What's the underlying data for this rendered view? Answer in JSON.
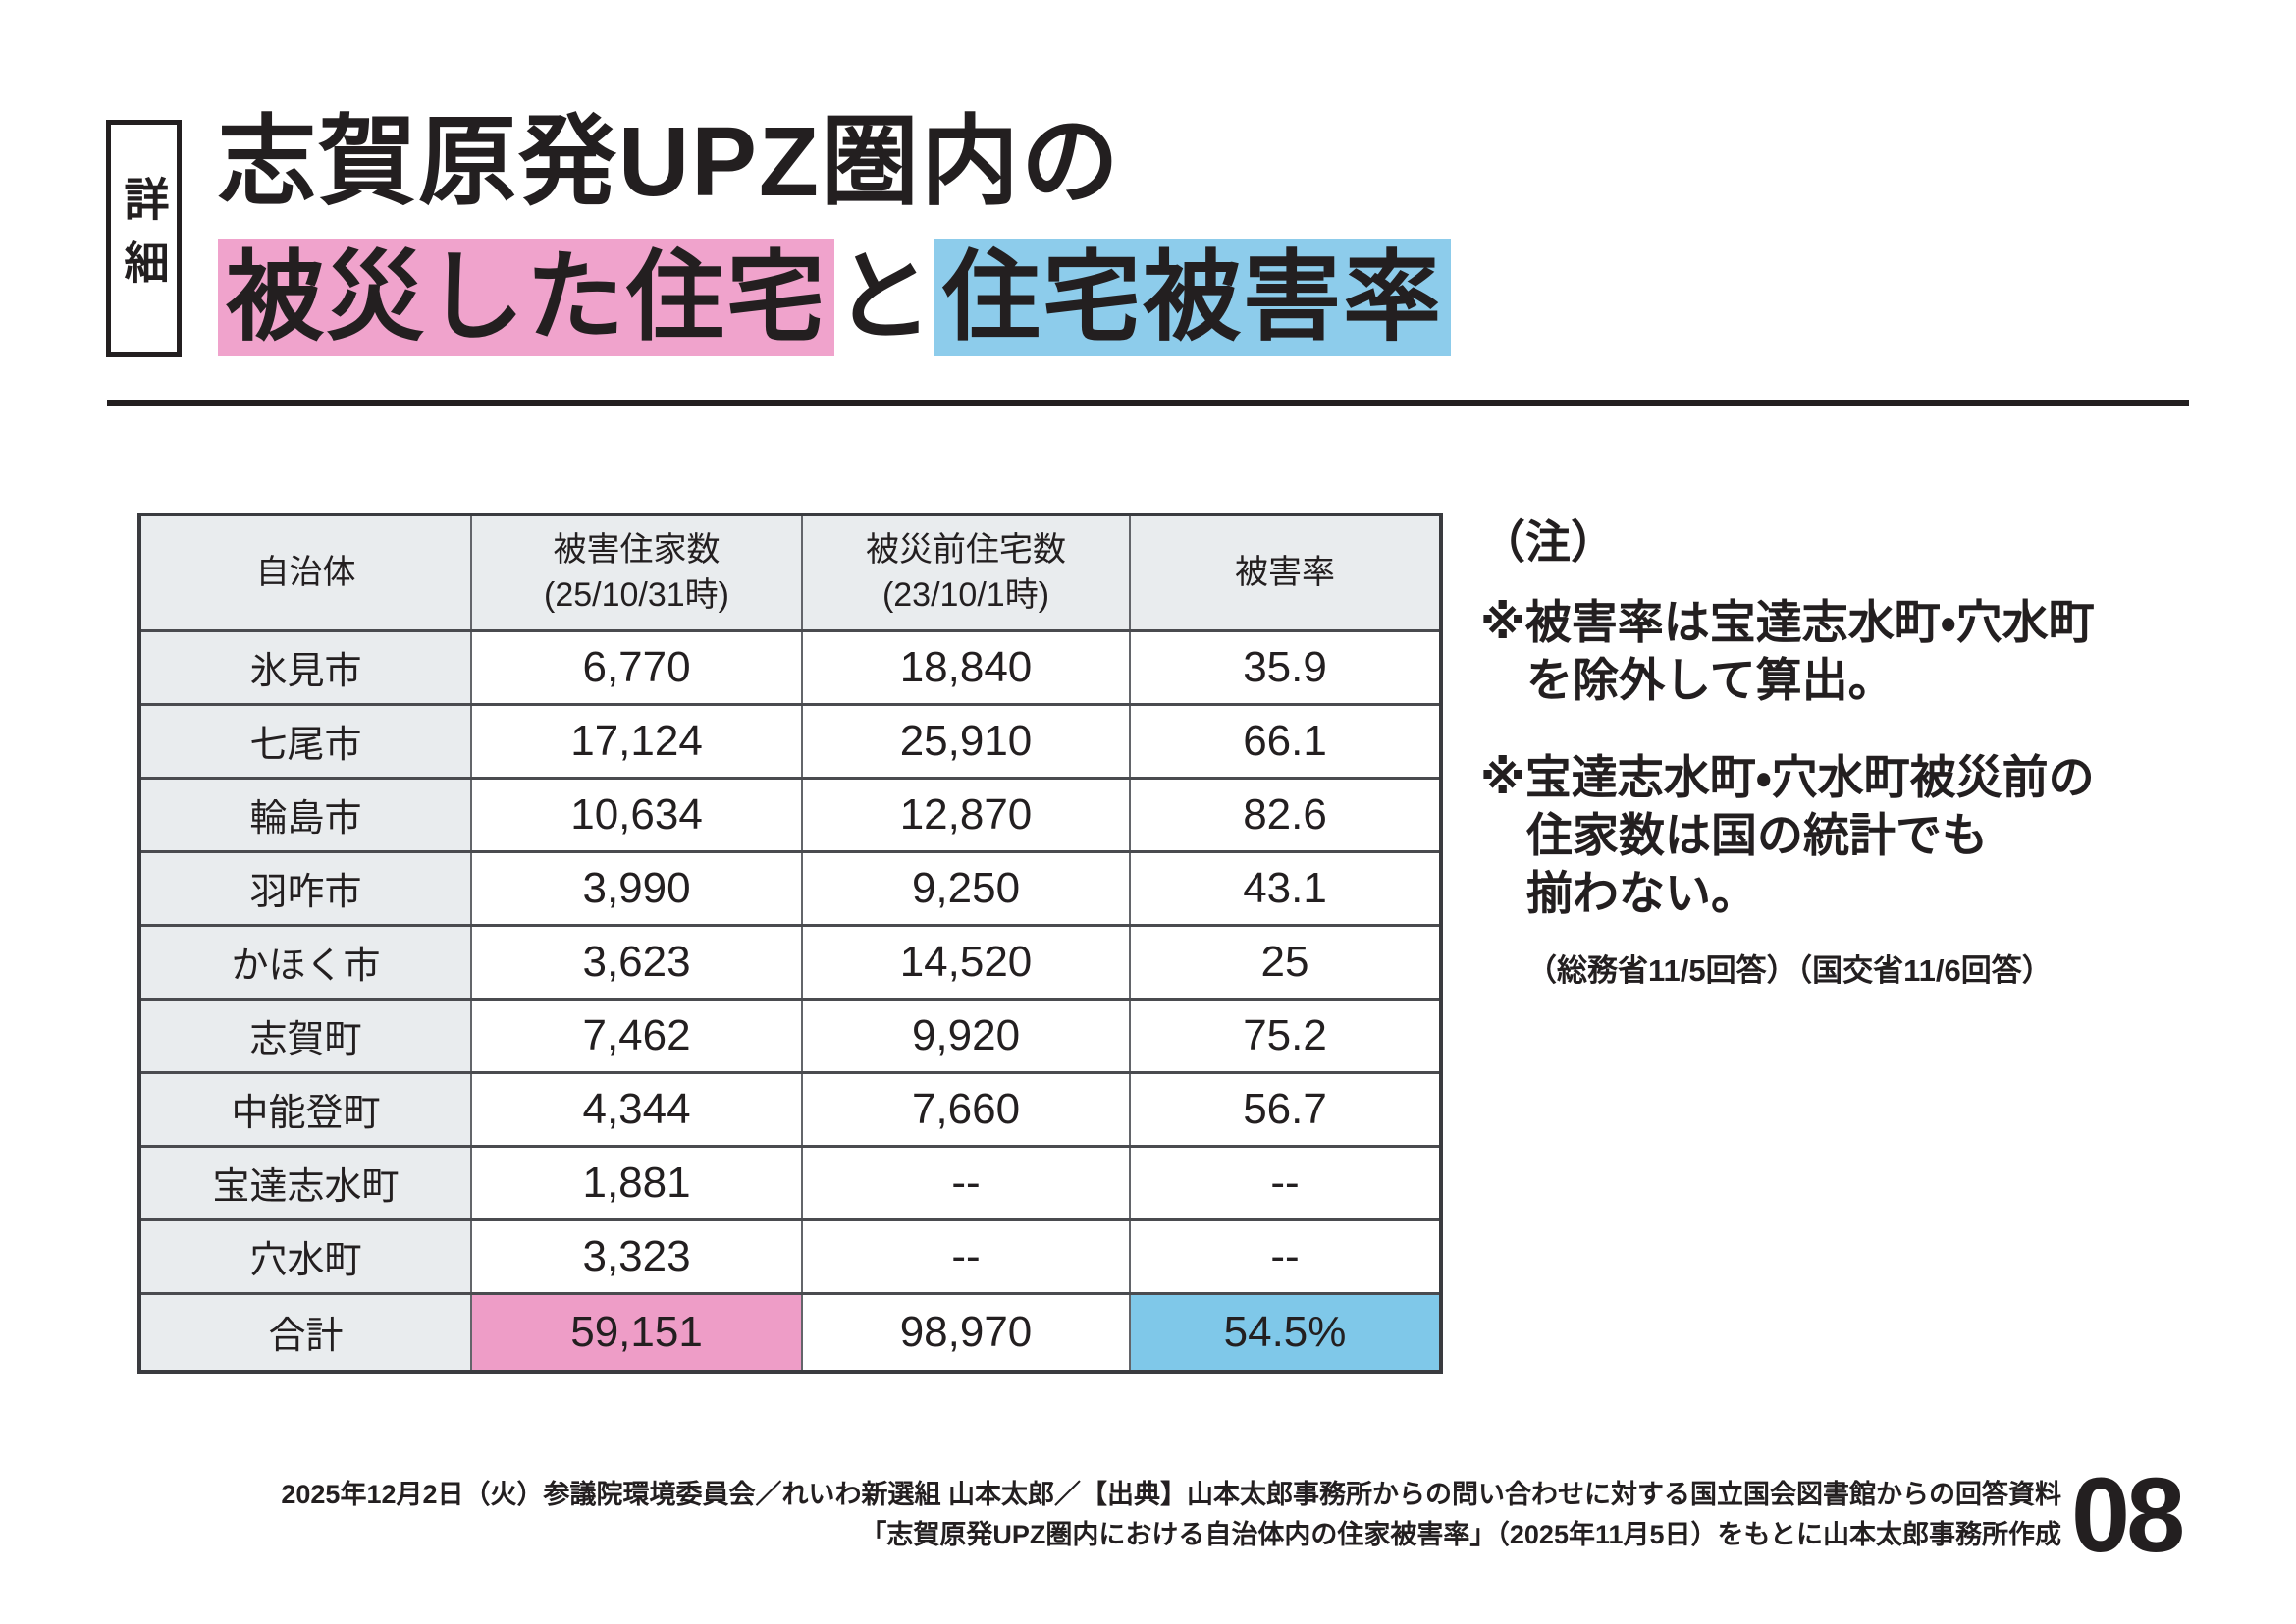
{
  "colors": {
    "ink": "#231F20",
    "pink_highlight": "#F0A3CC",
    "blue_highlight": "#8DCCEB",
    "table_pink": "#EE9DC7",
    "table_blue": "#7FC8E9",
    "cell_gray": "#E9ECEE"
  },
  "header": {
    "tag": "詳細",
    "title_line1": "志賀原発UPZ圏内の",
    "title_line2": {
      "pink": "被災した住宅",
      "plain": "と",
      "blue": "住宅被害率"
    }
  },
  "table": {
    "headers": [
      {
        "line1": "自治体",
        "line2": ""
      },
      {
        "line1": "被害住家数",
        "line2": "(25/10/31時)"
      },
      {
        "line1": "被災前住宅数",
        "line2": "(23/10/1時)"
      },
      {
        "line1": "被害率",
        "line2": ""
      }
    ],
    "rows": [
      {
        "name": "氷見市",
        "damaged": "6,770",
        "pre": "18,840",
        "rate": "35.9"
      },
      {
        "name": "七尾市",
        "damaged": "17,124",
        "pre": "25,910",
        "rate": "66.1"
      },
      {
        "name": "輪島市",
        "damaged": "10,634",
        "pre": "12,870",
        "rate": "82.6"
      },
      {
        "name": "羽咋市",
        "damaged": "3,990",
        "pre": "9,250",
        "rate": "43.1"
      },
      {
        "name": "かほく市",
        "damaged": "3,623",
        "pre": "14,520",
        "rate": "25"
      },
      {
        "name": "志賀町",
        "damaged": "7,462",
        "pre": "9,920",
        "rate": "75.2"
      },
      {
        "name": "中能登町",
        "damaged": "4,344",
        "pre": "7,660",
        "rate": "56.7"
      },
      {
        "name": "宝達志水町",
        "damaged": "1,881",
        "pre": "--",
        "rate": "--"
      },
      {
        "name": "穴水町",
        "damaged": "3,323",
        "pre": "--",
        "rate": "--"
      }
    ],
    "total": {
      "name": "合計",
      "damaged": "59,151",
      "pre": "98,970",
      "rate": "54.5%"
    }
  },
  "notes": {
    "heading": "（注）",
    "note1": {
      "lines": [
        "※被害率は宝達志水町・穴水町",
        "を除外して算出。"
      ]
    },
    "note2": {
      "lines": [
        "※宝達志水町・穴水町被災前の",
        "住家数は国の統計でも",
        "揃わない。"
      ]
    },
    "subnote": "（総務省11/5回答）（国交省11/6回答）"
  },
  "footer": {
    "line1": "2025年12月2日（火）参議院環境委員会／れいわ新選組 山本太郎／【出典】山本太郎事務所からの問い合わせに対する国立国会図書館からの回答資料",
    "line2": "「志賀原発UPZ圏内における自治体内の住家被害率」（2025年11月5日）をもとに山本太郎事務所作成",
    "page_number": "08"
  }
}
